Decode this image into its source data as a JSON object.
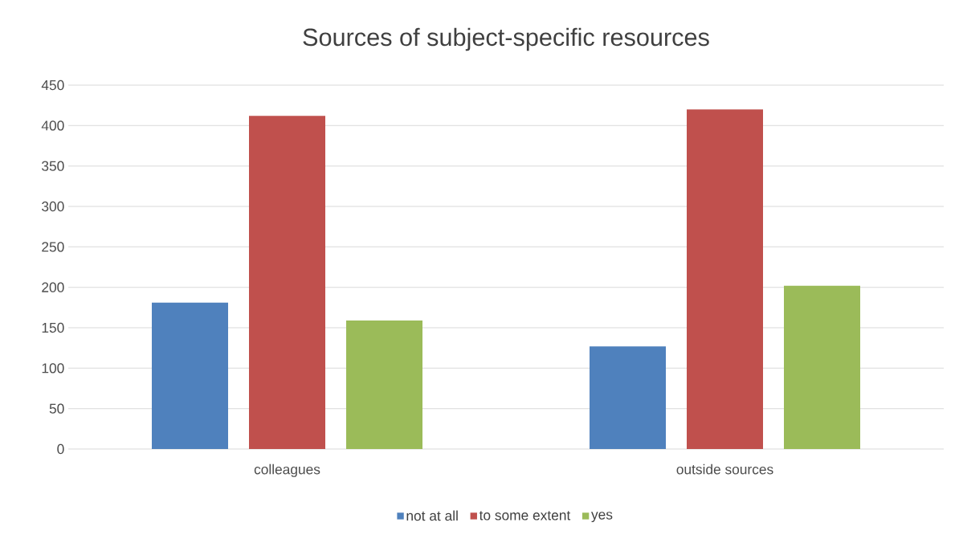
{
  "chart_data": {
    "type": "bar",
    "title": "Sources of subject-specific resources",
    "categories": [
      "colleagues",
      "outside sources"
    ],
    "series": [
      {
        "name": "not at all",
        "color": "#4f81bd",
        "values": [
          181,
          127
        ]
      },
      {
        "name": "to some extent",
        "color": "#c0504d",
        "values": [
          412,
          420
        ]
      },
      {
        "name": "yes",
        "color": "#9bbb59",
        "values": [
          159,
          202
        ]
      }
    ],
    "ylim": [
      0,
      450
    ],
    "yticks": [
      0,
      50,
      100,
      150,
      200,
      250,
      300,
      350,
      400,
      450
    ],
    "grid": "y",
    "legend": "bottom"
  }
}
